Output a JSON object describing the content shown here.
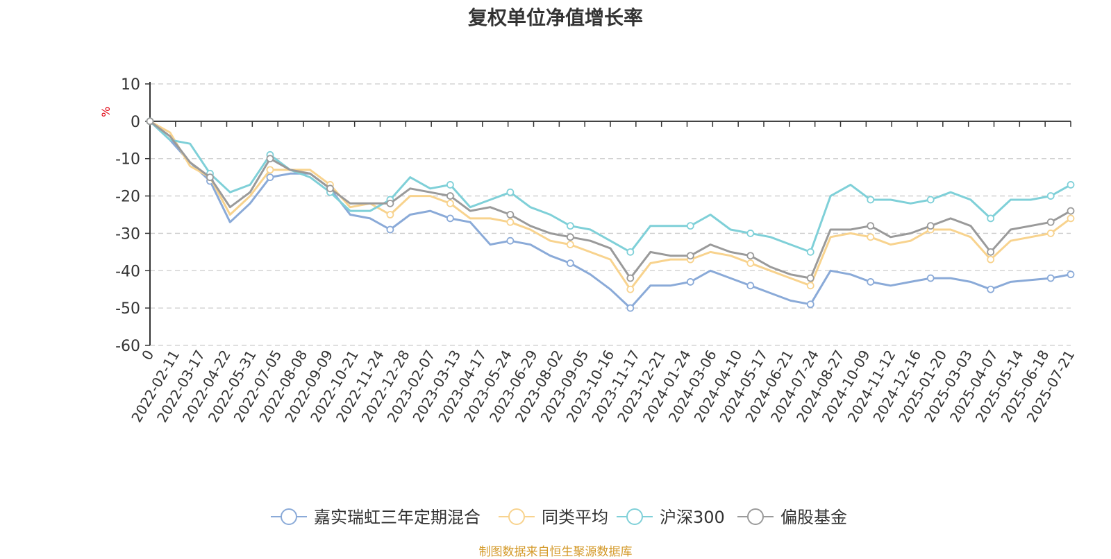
{
  "chart_data": {
    "type": "line",
    "title": "复权单位净值增长率",
    "ylabel": "%",
    "ylim": [
      -60,
      10
    ],
    "yticks": [
      10,
      0,
      -10,
      -20,
      -30,
      -40,
      -50,
      -60
    ],
    "x_tick_labels": [
      "0",
      "2022-02-11",
      "2022-03-17",
      "2022-04-22",
      "2022-05-31",
      "2022-07-05",
      "2022-08-08",
      "2022-09-09",
      "2022-10-21",
      "2022-11-24",
      "2022-12-28",
      "2023-02-07",
      "2023-03-13",
      "2023-04-17",
      "2023-05-24",
      "2023-06-29",
      "2023-08-02",
      "2023-09-05",
      "2023-10-16",
      "2023-11-17",
      "2023-12-21",
      "2024-01-24",
      "2024-03-06",
      "2024-04-10",
      "2024-05-17",
      "2024-06-21",
      "2024-07-24",
      "2024-08-27",
      "2024-10-09",
      "2024-11-12",
      "2024-12-16",
      "2025-01-20",
      "2025-03-03",
      "2025-04-07",
      "2025-05-14",
      "2025-06-18",
      "2025-07-21"
    ],
    "grid": "horizontal dashed",
    "legend_position": "bottom",
    "series": [
      {
        "name": "嘉实瑞虹三年定期混合",
        "color": "#8aaad8",
        "values": [
          0,
          -5,
          -11,
          -16,
          -27,
          -22,
          -15,
          -14,
          -14,
          -18,
          -25,
          -26,
          -29,
          -25,
          -24,
          -26,
          -27,
          -33,
          -32,
          -33,
          -36,
          -38,
          -41,
          -45,
          -50,
          -44,
          -44,
          -43,
          -40,
          -42,
          -44,
          -46,
          -48,
          -49,
          -40,
          -41,
          -43,
          -44,
          -43,
          -42,
          -42,
          -43,
          -45,
          -43,
          -42.5,
          -42,
          -41
        ]
      },
      {
        "name": "同类平均",
        "color": "#f8d38e",
        "values": [
          0,
          -3,
          -12,
          -15,
          -25,
          -20,
          -13,
          -13,
          -13,
          -17,
          -23,
          -22,
          -25,
          -20,
          -20,
          -22,
          -26,
          -26,
          -27,
          -29,
          -32,
          -33,
          -35,
          -37,
          -45,
          -38,
          -37,
          -37,
          -35,
          -36,
          -38,
          -40,
          -42,
          -44,
          -31,
          -30,
          -31,
          -33,
          -32,
          -29,
          -29,
          -31,
          -37,
          -32,
          -31,
          -30,
          -26
        ]
      },
      {
        "name": "沪深300",
        "color": "#7fd0d8",
        "values": [
          0,
          -5,
          -6,
          -14,
          -19,
          -17,
          -9,
          -13,
          -15,
          -19,
          -24,
          -24,
          -21,
          -15,
          -18,
          -17,
          -23,
          -21,
          -19,
          -23,
          -25,
          -28,
          -29,
          -32,
          -35,
          -28,
          -28,
          -28,
          -25,
          -29,
          -30,
          -31,
          -33,
          -35,
          -20,
          -17,
          -21,
          -21,
          -22,
          -21,
          -19,
          -21,
          -26,
          -21,
          -21,
          -20,
          -17
        ]
      },
      {
        "name": "偏股基金",
        "color": "#9a9a9a",
        "values": [
          0,
          -4,
          -11,
          -15,
          -23,
          -19,
          -10,
          -13,
          -14,
          -18,
          -22,
          -22,
          -22,
          -18,
          -19,
          -20,
          -24,
          -23,
          -25,
          -28,
          -30,
          -31,
          -32,
          -34,
          -42,
          -35,
          -36,
          -36,
          -33,
          -35,
          -36,
          -39,
          -41,
          -42,
          -29,
          -29,
          -28,
          -31,
          -30,
          -28,
          -26,
          -28,
          -35,
          -29,
          -28,
          -27,
          -24
        ]
      }
    ]
  },
  "footer": "制图数据来自恒生聚源数据库"
}
